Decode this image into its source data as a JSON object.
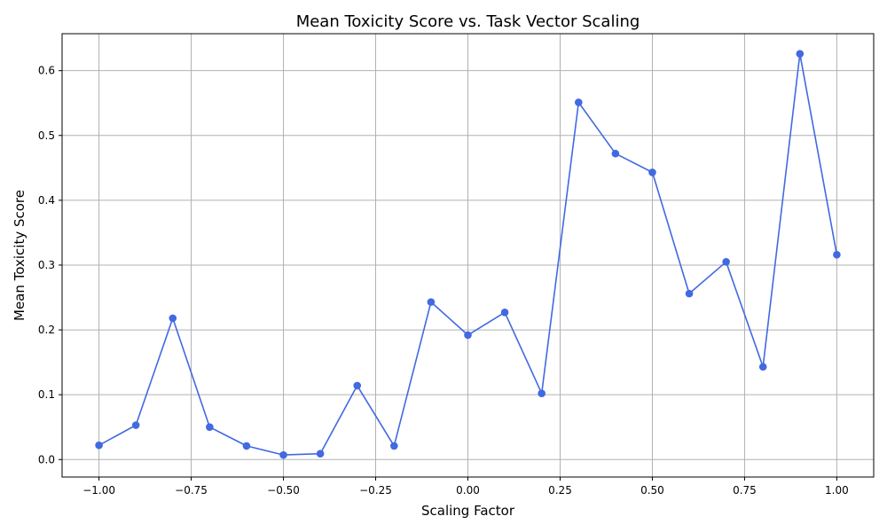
{
  "chart_data": {
    "type": "line",
    "title": "Mean Toxicity Score vs. Task Vector Scaling",
    "xlabel": "Scaling Factor",
    "ylabel": "Mean Toxicity Score",
    "x": [
      -1.0,
      -0.9,
      -0.8,
      -0.7,
      -0.6,
      -0.5,
      -0.4,
      -0.3,
      -0.2,
      -0.1,
      0.0,
      0.1,
      0.2,
      0.3,
      0.4,
      0.5,
      0.6,
      0.7,
      0.8,
      0.9,
      1.0
    ],
    "series": [
      {
        "values": [
          0.022,
          0.053,
          0.218,
          0.05,
          0.021,
          0.007,
          0.009,
          0.114,
          0.021,
          0.243,
          0.192,
          0.227,
          0.102,
          0.551,
          0.472,
          0.443,
          0.256,
          0.305,
          0.143,
          0.626,
          0.316
        ],
        "color": "#4169e1",
        "marker": "circle"
      }
    ],
    "xlim": [
      -1.1,
      1.1
    ],
    "ylim": [
      -0.027,
      0.657
    ],
    "x_ticks": [
      -1.0,
      -0.75,
      -0.5,
      -0.25,
      0.0,
      0.25,
      0.5,
      0.75,
      1.0
    ],
    "x_tick_labels": [
      "−1.00",
      "−0.75",
      "−0.50",
      "−0.25",
      "0.00",
      "0.25",
      "0.50",
      "0.75",
      "1.00"
    ],
    "y_ticks": [
      0.0,
      0.1,
      0.2,
      0.3,
      0.4,
      0.5,
      0.6
    ],
    "y_tick_labels": [
      "0.0",
      "0.1",
      "0.2",
      "0.3",
      "0.4",
      "0.5",
      "0.6"
    ],
    "grid": true,
    "legend": "none"
  }
}
